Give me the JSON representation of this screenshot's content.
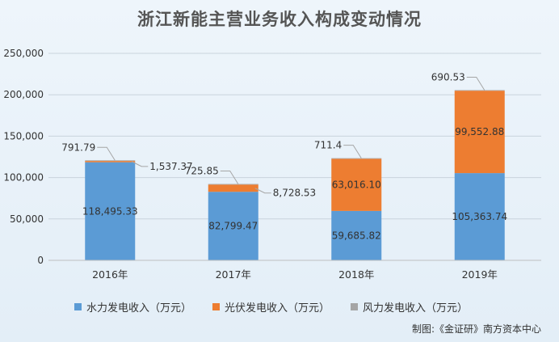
{
  "title": "浙江新能主营业务收入构成变动情况",
  "credit": "制图:《金证研》南方资本中心",
  "colors": {
    "hydro": "#5b9bd5",
    "solar": "#ed7d31",
    "wind": "#a5a5a5"
  },
  "chart_data": {
    "type": "bar",
    "stacked": true,
    "categories": [
      "2016年",
      "2017年",
      "2018年",
      "2019年"
    ],
    "series": [
      {
        "name": "水力发电收入（万元）",
        "values": [
          118495.33,
          82799.47,
          59685.82,
          105363.74
        ],
        "labels": [
          "118,495.33",
          "82,799.47",
          "59,685.82",
          "105,363.74"
        ]
      },
      {
        "name": "光伏发电收入（万元）",
        "values": [
          1537.37,
          8728.53,
          63016.1,
          99552.88
        ],
        "labels": [
          "1,537.37",
          "8,728.53",
          "63,016.10",
          "99,552.88"
        ]
      },
      {
        "name": "风力发电收入（万元）",
        "values": [
          791.79,
          725.85,
          711.4,
          690.53
        ],
        "labels": [
          "791.79",
          "725.85",
          "711.4",
          "690.53"
        ]
      }
    ],
    "yticks": [
      "0",
      "50,000",
      "100,000",
      "150,000",
      "200,000",
      "250,000"
    ],
    "ylim": [
      0,
      250000
    ],
    "grid": true,
    "legend": "bottom"
  }
}
